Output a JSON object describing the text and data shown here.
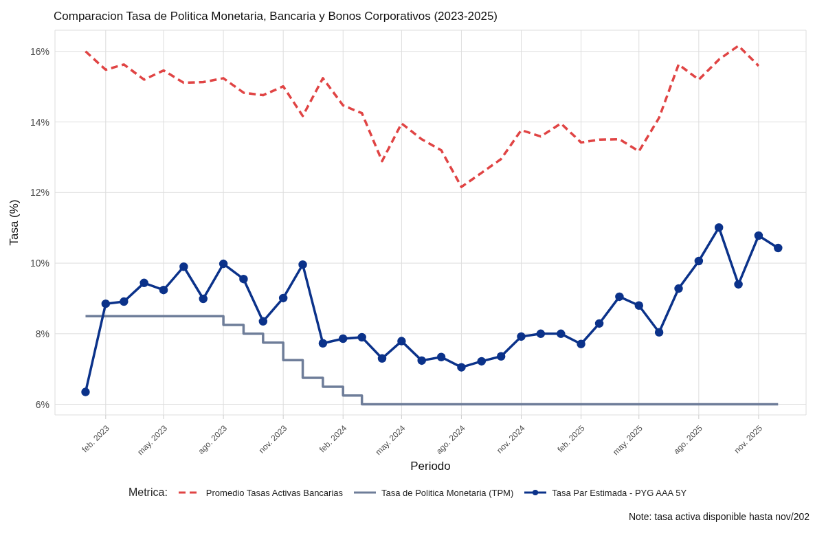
{
  "chart_data": {
    "type": "line",
    "title": "Comparacion Tasa de Politica Monetaria, Bancaria y Bonos Corporativos (2023-2025)",
    "xlabel": "Periodo",
    "ylabel": "Tasa (%)",
    "legend_title": "Metrica:",
    "legend": "bottom",
    "grid": true,
    "x": [
      "2023-01",
      "2023-02",
      "2023-03",
      "2023-04",
      "2023-05",
      "2023-06",
      "2023-07",
      "2023-08",
      "2023-09",
      "2023-10",
      "2023-11",
      "2023-12",
      "2024-01",
      "2024-02",
      "2024-03",
      "2024-04",
      "2024-05",
      "2024-06",
      "2024-07",
      "2024-08",
      "2024-09",
      "2024-10",
      "2024-11",
      "2024-12",
      "2025-01",
      "2025-02",
      "2025-03",
      "2025-04",
      "2025-05",
      "2025-06",
      "2025-07",
      "2025-08",
      "2025-09",
      "2025-10",
      "2025-11",
      "2025-12"
    ],
    "series": [
      {
        "name": "Promedio Tasas Activas Bancarias",
        "type": "line",
        "line_style": "dashed",
        "marker": "none",
        "color": "#e04444",
        "values": [
          16.0,
          15.48,
          15.63,
          15.2,
          15.46,
          15.11,
          15.13,
          15.24,
          14.83,
          14.76,
          15.01,
          14.17,
          15.24,
          14.47,
          14.25,
          12.89,
          13.96,
          13.51,
          13.2,
          12.16,
          12.56,
          12.95,
          13.77,
          13.59,
          13.96,
          13.42,
          13.5,
          13.51,
          13.17,
          14.12,
          15.63,
          15.2,
          15.77,
          16.16,
          15.59,
          null
        ]
      },
      {
        "name": "Tasa de Politica Monetaria (TPM)",
        "type": "step",
        "line_style": "solid",
        "marker": "none",
        "color": "#6e7d99",
        "values": [
          8.5,
          8.5,
          8.5,
          8.5,
          8.5,
          8.5,
          8.5,
          8.25,
          8.0,
          7.75,
          7.25,
          6.75,
          6.5,
          6.25,
          6.0,
          6.0,
          6.0,
          6.0,
          6.0,
          6.0,
          6.0,
          6.0,
          6.0,
          6.0,
          6.0,
          6.0,
          6.0,
          6.0,
          6.0,
          6.0,
          6.0,
          6.0,
          6.0,
          6.0,
          6.0,
          6.0
        ]
      },
      {
        "name": "Tasa Par Estimada - PYG AAA 5Y",
        "type": "line",
        "line_style": "solid",
        "marker": "circle",
        "color": "#0b328a",
        "values": [
          6.35,
          8.85,
          8.91,
          9.44,
          9.24,
          9.9,
          8.99,
          9.98,
          9.55,
          8.35,
          9.01,
          9.96,
          7.73,
          7.86,
          7.9,
          7.3,
          7.79,
          7.24,
          7.34,
          7.05,
          7.22,
          7.36,
          7.92,
          8.0,
          8.0,
          7.71,
          8.29,
          9.05,
          8.8,
          8.04,
          9.28,
          10.06,
          11.01,
          9.4,
          10.78,
          10.43
        ]
      }
    ],
    "ylim": [
      5.7,
      16.6
    ],
    "yticks": [
      {
        "value": 6,
        "label": "6%"
      },
      {
        "value": 8,
        "label": "8%"
      },
      {
        "value": 10,
        "label": "10%"
      },
      {
        "value": 12,
        "label": "12%"
      },
      {
        "value": 14,
        "label": "14%"
      },
      {
        "value": 16,
        "label": "16%"
      }
    ],
    "xlim": [
      "2022-11-15",
      "2026-01-13"
    ],
    "xticks": [
      {
        "value": "2023-02",
        "label": "feb. 2023"
      },
      {
        "value": "2023-05",
        "label": "may. 2023"
      },
      {
        "value": "2023-08",
        "label": "ago. 2023"
      },
      {
        "value": "2023-11",
        "label": "nov. 2023"
      },
      {
        "value": "2024-02",
        "label": "feb. 2024"
      },
      {
        "value": "2024-05",
        "label": "may. 2024"
      },
      {
        "value": "2024-08",
        "label": "ago. 2024"
      },
      {
        "value": "2024-11",
        "label": "nov. 2024"
      },
      {
        "value": "2025-02",
        "label": "feb. 2025"
      },
      {
        "value": "2025-05",
        "label": "may. 2025"
      },
      {
        "value": "2025-08",
        "label": "ago. 2025"
      },
      {
        "value": "2025-11",
        "label": "nov. 2025"
      }
    ],
    "annotations": [
      "Note: tasa activa disponible hasta nov/202"
    ]
  }
}
